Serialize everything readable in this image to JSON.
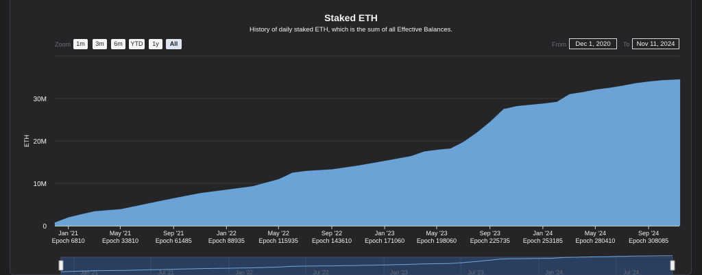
{
  "header": {
    "title": "Staked ETH",
    "subtitle": "History of daily staked ETH, which is the sum of all Effective Balances."
  },
  "controls": {
    "zoom_label": "Zoom",
    "zoom_buttons": [
      "1m",
      "3m",
      "6m",
      "YTD",
      "1y",
      "All"
    ],
    "active_zoom": "All",
    "from_label": "From",
    "from_value": "Dec 1, 2020",
    "to_label": "To",
    "to_value": "Nov 11, 2024"
  },
  "colors": {
    "bar_fill": "#6fa8dc",
    "background": "#252427",
    "navigator_fill": "#2a3f5f"
  },
  "chart_data": {
    "type": "bar",
    "title": "Staked ETH",
    "subtitle": "History of daily staked ETH, which is the sum of all Effective Balances.",
    "ylabel": "ETH",
    "xlabel": "",
    "ylim": [
      0,
      40000000
    ],
    "y_ticks": [
      "0",
      "10M",
      "20M",
      "30M"
    ],
    "x_range": [
      "2020-12-01",
      "2024-11-11"
    ],
    "x_ticks": [
      {
        "date": "Jan '21",
        "epoch": "Epoch 6810"
      },
      {
        "date": "May '21",
        "epoch": "Epoch 33810"
      },
      {
        "date": "Sep '21",
        "epoch": "Epoch 61485"
      },
      {
        "date": "Jan '22",
        "epoch": "Epoch 88935"
      },
      {
        "date": "May '22",
        "epoch": "Epoch 115935"
      },
      {
        "date": "Sep '22",
        "epoch": "Epoch 143610"
      },
      {
        "date": "Jan '23",
        "epoch": "Epoch 171060"
      },
      {
        "date": "May '23",
        "epoch": "Epoch 198060"
      },
      {
        "date": "Sep '23",
        "epoch": "Epoch 225735"
      },
      {
        "date": "Jan '24",
        "epoch": "Epoch 253185"
      },
      {
        "date": "May '24",
        "epoch": "Epoch 280410"
      },
      {
        "date": "Sep '24",
        "epoch": "Epoch 308085"
      }
    ],
    "series": [
      {
        "x": [
          "2020-12-01",
          "2021-01-01",
          "2021-03-01",
          "2021-05-01",
          "2021-07-01",
          "2021-09-01",
          "2021-11-01",
          "2022-01-01",
          "2022-03-01",
          "2022-05-01",
          "2022-06-01",
          "2022-07-01",
          "2022-09-01",
          "2022-11-01",
          "2023-01-01",
          "2023-03-01",
          "2023-04-01",
          "2023-05-01",
          "2023-06-01",
          "2023-07-01",
          "2023-08-01",
          "2023-09-01",
          "2023-10-01",
          "2023-11-01",
          "2023-12-01",
          "2024-01-01",
          "2024-02-01",
          "2024-03-01",
          "2024-04-01",
          "2024-05-01",
          "2024-06-01",
          "2024-07-01",
          "2024-08-01",
          "2024-09-01",
          "2024-10-01",
          "2024-11-11"
        ],
        "values": [
          800000,
          2000000,
          3400000,
          3900000,
          5200000,
          6500000,
          7700000,
          8500000,
          9300000,
          11000000,
          12500000,
          12900000,
          13300000,
          14200000,
          15300000,
          16400000,
          17500000,
          17900000,
          18200000,
          19800000,
          22000000,
          24600000,
          27500000,
          28200000,
          28500000,
          28800000,
          29200000,
          31000000,
          31500000,
          32100000,
          32500000,
          33000000,
          33600000,
          34000000,
          34300000,
          34500000
        ]
      }
    ],
    "navigator_ticks": [
      "Jan '21",
      "Jul '21",
      "Jan '22",
      "Jul '22",
      "Jan '23",
      "Jul '23",
      "Jan '24",
      "Jul '24"
    ]
  }
}
